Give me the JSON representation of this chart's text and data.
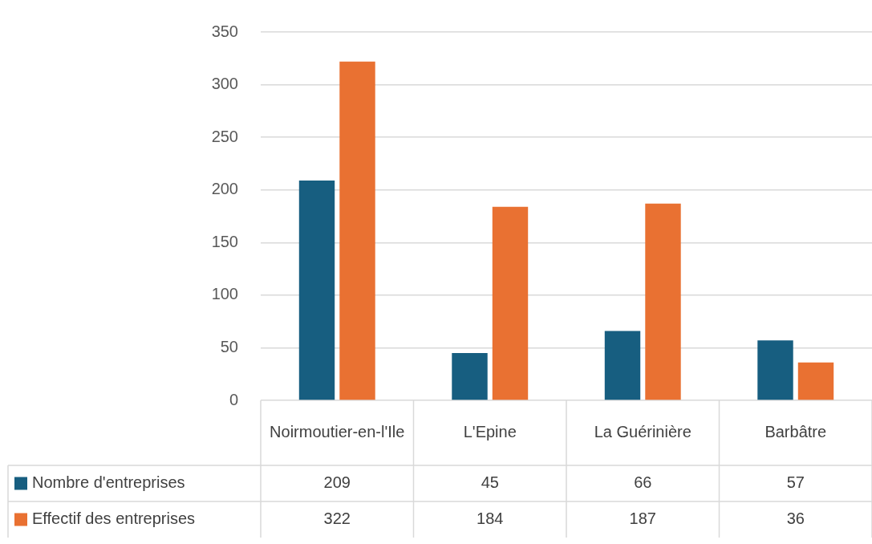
{
  "chart_data": {
    "type": "bar",
    "categories": [
      "Noirmoutier-en-l'Ile",
      "L'Epine",
      "La Guérinière",
      "Barbâtre"
    ],
    "series": [
      {
        "name": "Nombre d'entreprises",
        "color": "#175e80",
        "values": [
          209,
          45,
          66,
          57
        ]
      },
      {
        "name": "Effectif des entreprises",
        "color": "#e97132",
        "values": [
          322,
          184,
          187,
          36
        ]
      }
    ],
    "ylim": [
      0,
      350
    ],
    "yticks": [
      0,
      50,
      100,
      150,
      200,
      250,
      300,
      350
    ],
    "grid": "y",
    "legend": "bottom",
    "data_labels": true
  }
}
